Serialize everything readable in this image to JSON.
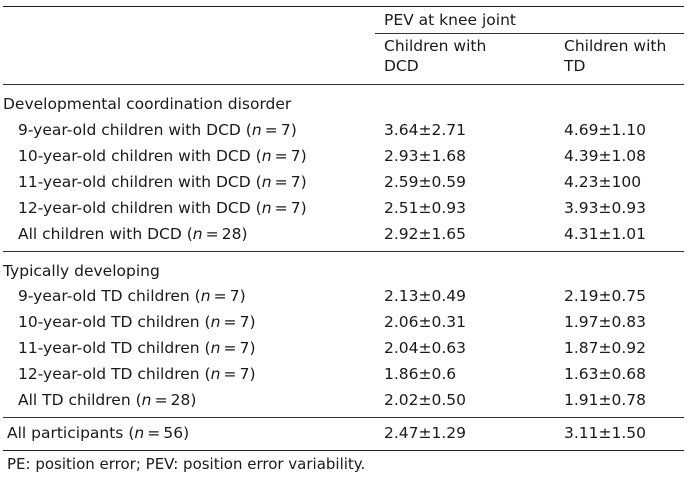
{
  "table": {
    "spanning_header": "PEV at knee joint",
    "col_headers": [
      {
        "line1": "Children with",
        "line2": "DCD"
      },
      {
        "line1": "Children with",
        "line2": "TD"
      }
    ],
    "groups": [
      {
        "title": "Developmental coordination disorder",
        "rows": [
          {
            "label": "9-year-old children with DCD",
            "n": "7",
            "dcd": "3.64±2.71",
            "td": "4.69±1.10"
          },
          {
            "label": "10-year-old children with DCD",
            "n": "7",
            "dcd": "2.93±1.68",
            "td": "4.39±1.08"
          },
          {
            "label": "11-year-old children with DCD",
            "n": "7",
            "dcd": "2.59±0.59",
            "td": "4.23±100"
          },
          {
            "label": "12-year-old children with DCD",
            "n": "7",
            "dcd": "2.51±0.93",
            "td": "3.93±0.93"
          },
          {
            "label": "All children with DCD",
            "n": "28",
            "dcd": "2.92±1.65",
            "td": "4.31±1.01"
          }
        ]
      },
      {
        "title": "Typically developing",
        "rows": [
          {
            "label": "9-year-old TD children",
            "n": "7",
            "dcd": "2.13±0.49",
            "td": "2.19±0.75"
          },
          {
            "label": "10-year-old TD children",
            "n": "7",
            "dcd": "2.06±0.31",
            "td": "1.97±0.83"
          },
          {
            "label": "11-year-old TD children",
            "n": "7",
            "dcd": "2.04±0.63",
            "td": "1.87±0.92"
          },
          {
            "label": "12-year-old TD children",
            "n": "7",
            "dcd": "1.86±0.6",
            "td": "1.63±0.68"
          },
          {
            "label": "All TD children",
            "n": "28",
            "dcd": "2.02±0.50",
            "td": "1.91±0.78"
          }
        ]
      }
    ],
    "total": {
      "label": "All participants",
      "n": "56",
      "dcd": "2.47±1.29",
      "td": "3.11±1.50"
    }
  },
  "footnote": "PE: position error; PEV: position error variability."
}
